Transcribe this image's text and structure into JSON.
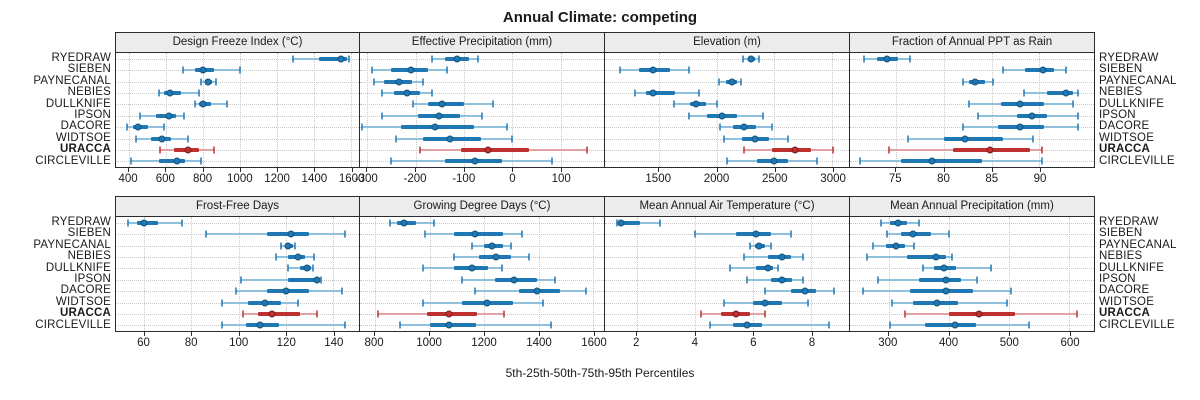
{
  "title": "Annual Climate: competing",
  "xlabel": "5th-25th-50th-75th-95th Percentiles",
  "percentile_labels": [
    "5th",
    "25th",
    "50th",
    "75th",
    "95th"
  ],
  "sites": [
    "RYEDRAW",
    "SIEBEN",
    "PAYNECANAL",
    "NEBIES",
    "DULLKNIFE",
    "IPSON",
    "DACORE",
    "WIDTSOE",
    "URACCA",
    "CIRCLEVILLE"
  ],
  "highlighted_site": "URACCA",
  "colors": {
    "series": "#1f77b4",
    "series_light": "#8fc0dd",
    "series_dot_edge": "#14557f",
    "highlight": "#be2f2f",
    "highlight_light": "#e0a2a2",
    "highlight_dot_edge": "#7e1f1f",
    "strip_bg": "#ececec",
    "panel_border": "#2b2b2b",
    "grid": "#c9c9c9"
  },
  "chart_data": [
    {
      "type": "dot-interval",
      "title": "Design Freeze Index (°C)",
      "row": 0,
      "xlim": [
        330,
        1645
      ],
      "ticks": [
        400,
        600,
        800,
        1000,
        1200,
        1400,
        1600
      ],
      "percentiles": [
        [
          1290,
          1430,
          1550,
          1578,
          1592
        ],
        [
          690,
          760,
          800,
          860,
          1000
        ],
        [
          790,
          815,
          830,
          850,
          870
        ],
        [
          560,
          590,
          620,
          680,
          780
        ],
        [
          760,
          780,
          800,
          845,
          930
        ],
        [
          460,
          545,
          615,
          655,
          700
        ],
        [
          390,
          420,
          450,
          505,
          590
        ],
        [
          440,
          520,
          580,
          625,
          720
        ],
        [
          570,
          645,
          720,
          780,
          860
        ],
        [
          410,
          560,
          660,
          705,
          790
        ]
      ]
    },
    {
      "type": "dot-interval",
      "title": "Effective Precipitation (mm)",
      "row": 0,
      "xlim": [
        -315,
        190
      ],
      "ticks": [
        -300,
        -200,
        -100,
        0,
        100
      ],
      "percentiles": [
        [
          -165,
          -140,
          -115,
          -90,
          -70
        ],
        [
          -290,
          -250,
          -210,
          -175,
          -135
        ],
        [
          -285,
          -265,
          -235,
          -207,
          -185
        ],
        [
          -270,
          -245,
          -217,
          -190,
          -165
        ],
        [
          -205,
          -175,
          -145,
          -100,
          -40
        ],
        [
          -270,
          -195,
          -152,
          -107,
          -63
        ],
        [
          -310,
          -230,
          -160,
          -80,
          -10
        ],
        [
          -240,
          -185,
          -128,
          -65,
          0
        ],
        [
          -190,
          -105,
          -50,
          35,
          155
        ],
        [
          -250,
          -140,
          -76,
          -22,
          83
        ]
      ]
    },
    {
      "type": "dot-interval",
      "title": "Elevation (m)",
      "row": 0,
      "xlim": [
        1035,
        3145
      ],
      "ticks": [
        1500,
        2000,
        2500,
        3000
      ],
      "percentiles": [
        [
          2230,
          2270,
          2300,
          2335,
          2370
        ],
        [
          1165,
          1330,
          1450,
          1600,
          1765
        ],
        [
          2025,
          2080,
          2130,
          2175,
          2215
        ],
        [
          1295,
          1390,
          1450,
          1640,
          1845
        ],
        [
          1635,
          1770,
          1820,
          1910,
          2000
        ],
        [
          1760,
          1920,
          2045,
          2180,
          2405
        ],
        [
          2030,
          2140,
          2240,
          2340,
          2475
        ],
        [
          2060,
          2220,
          2335,
          2450,
          2620
        ],
        [
          2240,
          2480,
          2680,
          2820,
          3010
        ],
        [
          2090,
          2350,
          2500,
          2620,
          2870
        ]
      ]
    },
    {
      "type": "dot-interval",
      "title": "Fraction of Annual PPT as Rain",
      "row": 0,
      "xlim": [
        70.2,
        95.7
      ],
      "ticks": [
        75,
        80,
        85,
        90
      ],
      "percentiles": [
        [
          71.7,
          73.0,
          74.1,
          75.2,
          76.5
        ],
        [
          86.2,
          88.5,
          90.4,
          91.5,
          92.8
        ],
        [
          82.0,
          82.6,
          83.3,
          84.3,
          85.1
        ],
        [
          88.4,
          90.8,
          92.8,
          93.5,
          94.0
        ],
        [
          82.6,
          86.0,
          88.0,
          90.5,
          93.5
        ],
        [
          83.6,
          87.7,
          89.2,
          90.8,
          94.0
        ],
        [
          82.0,
          85.7,
          88.0,
          90.5,
          94.0
        ],
        [
          76.3,
          80.0,
          82.2,
          86.2,
          89.3
        ],
        [
          74.3,
          81.0,
          84.8,
          89.0,
          90.3
        ],
        [
          71.2,
          75.5,
          78.8,
          84.0,
          90.3
        ]
      ]
    },
    {
      "type": "dot-interval",
      "title": "Frost-Free Days",
      "row": 1,
      "xlim": [
        48,
        151
      ],
      "ticks": [
        60,
        80,
        100,
        120,
        140
      ],
      "percentiles": [
        [
          53,
          57,
          60,
          66,
          76
        ],
        [
          86,
          112,
          122,
          130,
          145
        ],
        [
          118,
          120,
          121,
          123,
          124
        ],
        [
          116,
          121,
          125,
          128,
          132
        ],
        [
          121,
          126,
          129,
          130.5,
          131.5
        ],
        [
          101,
          121,
          133,
          134,
          135
        ],
        [
          99,
          112,
          120,
          130,
          144
        ],
        [
          93,
          104,
          111,
          118,
          125
        ],
        [
          102,
          108,
          114,
          126,
          133
        ],
        [
          93,
          103,
          109,
          117,
          145
        ]
      ]
    },
    {
      "type": "dot-interval",
      "title": "Growing Degree Days (°C)",
      "row": 1,
      "xlim": [
        745,
        1640
      ],
      "ticks": [
        800,
        1000,
        1200,
        1400,
        1600
      ],
      "percentiles": [
        [
          855,
          880,
          905,
          950,
          1015
        ],
        [
          985,
          1090,
          1165,
          1270,
          1340
        ],
        [
          1155,
          1200,
          1230,
          1270,
          1300
        ],
        [
          1090,
          1180,
          1245,
          1300,
          1365
        ],
        [
          975,
          1090,
          1155,
          1215,
          1265
        ],
        [
          1120,
          1240,
          1310,
          1395,
          1460
        ],
        [
          1165,
          1330,
          1395,
          1480,
          1575
        ],
        [
          975,
          1120,
          1210,
          1305,
          1415
        ],
        [
          810,
          990,
          1070,
          1175,
          1275
        ],
        [
          890,
          1000,
          1070,
          1170,
          1445
        ]
      ]
    },
    {
      "type": "dot-interval",
      "title": "Mean Annual Air Temperature (°C)",
      "row": 1,
      "xlim": [
        0.9,
        9.3
      ],
      "ticks": [
        2,
        4,
        6,
        8
      ],
      "percentiles": [
        [
          1.3,
          1.35,
          1.45,
          2.1,
          2.8
        ],
        [
          4.0,
          5.4,
          6.1,
          6.6,
          7.3
        ],
        [
          5.9,
          6.05,
          6.2,
          6.4,
          6.6
        ],
        [
          5.7,
          6.5,
          7.0,
          7.3,
          7.7
        ],
        [
          5.2,
          6.1,
          6.5,
          6.7,
          6.85
        ],
        [
          5.8,
          6.6,
          7.0,
          7.35,
          7.7
        ],
        [
          6.4,
          7.3,
          7.8,
          8.15,
          8.8
        ],
        [
          5.0,
          6.0,
          6.4,
          7.0,
          7.9
        ],
        [
          4.2,
          4.9,
          5.4,
          5.9,
          6.4
        ],
        [
          4.5,
          5.3,
          5.8,
          6.3,
          8.6
        ]
      ]
    },
    {
      "type": "dot-interval",
      "title": "Mean Annual Precipitation (mm)",
      "row": 1,
      "xlim": [
        236,
        641
      ],
      "ticks": [
        300,
        400,
        500,
        600
      ],
      "percentiles": [
        [
          288,
          303,
          315,
          330,
          350
        ],
        [
          297,
          320,
          340,
          370,
          400
        ],
        [
          275,
          295,
          312,
          328,
          342
        ],
        [
          265,
          330,
          378,
          395,
          405
        ],
        [
          357,
          375,
          392,
          412,
          470
        ],
        [
          283,
          350,
          395,
          420,
          447
        ],
        [
          258,
          335,
          396,
          440,
          503
        ],
        [
          305,
          340,
          380,
          415,
          496
        ],
        [
          327,
          400,
          450,
          510,
          612
        ],
        [
          303,
          360,
          411,
          445,
          533
        ]
      ]
    }
  ]
}
